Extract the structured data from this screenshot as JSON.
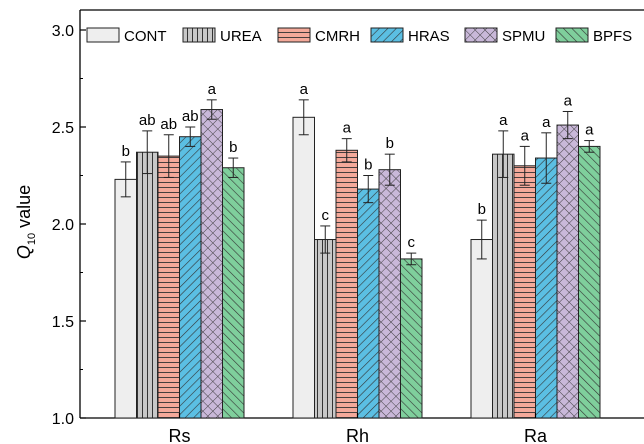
{
  "chart_data": {
    "type": "bar",
    "categories": [
      "Rs",
      "Rh",
      "Ra"
    ],
    "ylabel": {
      "main": "Q",
      "sub": "10",
      "rest": " value"
    },
    "ylim": [
      1.0,
      3.0
    ],
    "yticks": [
      "1.0",
      "1.5",
      "2.0",
      "2.5",
      "3.0"
    ],
    "legend_position": "top",
    "series": [
      {
        "name": "CONT",
        "fill": "#eeeeee",
        "pattern": "none",
        "values": [
          2.23,
          2.55,
          1.92
        ],
        "errors": [
          0.09,
          0.09,
          0.1
        ],
        "letters": [
          "b",
          "a",
          "b"
        ]
      },
      {
        "name": "UREA",
        "fill": "#c8c8c8",
        "pattern": "vertical",
        "values": [
          2.37,
          1.92,
          2.36
        ],
        "errors": [
          0.11,
          0.07,
          0.12
        ],
        "letters": [
          "ab",
          "c",
          "a"
        ]
      },
      {
        "name": "CMRH",
        "fill": "#f4a99a",
        "pattern": "horizontal",
        "values": [
          2.35,
          2.38,
          2.3
        ],
        "errors": [
          0.11,
          0.06,
          0.1
        ],
        "letters": [
          "ab",
          "a",
          "a"
        ]
      },
      {
        "name": "HRAS",
        "fill": "#5bbfe3",
        "pattern": "diagonal-forward",
        "values": [
          2.45,
          2.18,
          2.34
        ],
        "errors": [
          0.05,
          0.07,
          0.13
        ],
        "letters": [
          "ab",
          "b",
          "a"
        ]
      },
      {
        "name": "SPMU",
        "fill": "#c9b8d9",
        "pattern": "crosshatch",
        "values": [
          2.59,
          2.28,
          2.51
        ],
        "errors": [
          0.05,
          0.08,
          0.07
        ],
        "letters": [
          "a",
          "b",
          "a"
        ]
      },
      {
        "name": "BPFS",
        "fill": "#7fcf9c",
        "pattern": "diagonal-back",
        "values": [
          2.29,
          1.82,
          2.4
        ],
        "errors": [
          0.05,
          0.03,
          0.03
        ],
        "letters": [
          "b",
          "c",
          "a"
        ]
      }
    ]
  }
}
